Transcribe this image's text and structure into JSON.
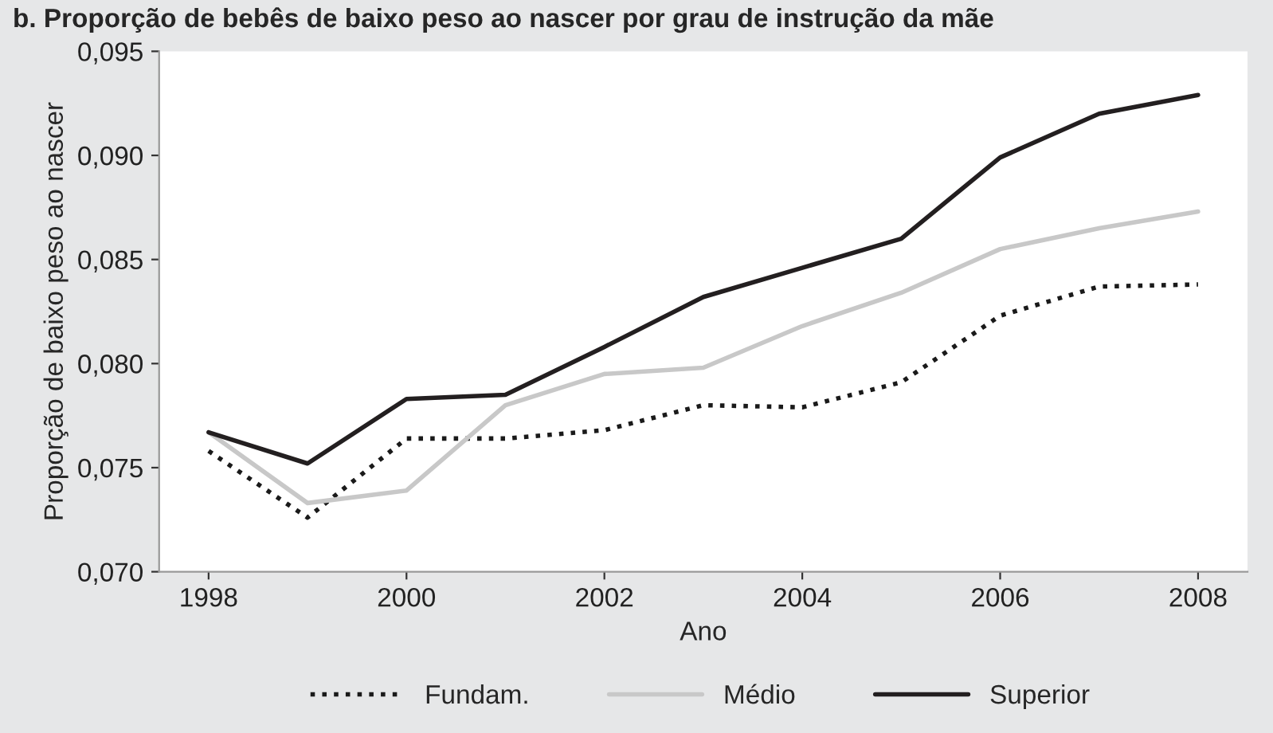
{
  "chart_data": {
    "type": "line",
    "title": "b. Proporção de bebês de baixo peso ao nascer por grau de instrução da mãe",
    "xlabel": "Ano",
    "ylabel": "Proporção de baixo peso ao nascer",
    "x": [
      1998,
      1999,
      2000,
      2001,
      2002,
      2003,
      2004,
      2005,
      2006,
      2007,
      2008
    ],
    "series": [
      {
        "name": "Fundam.",
        "color": "#1a1a1a",
        "line_style": "dotted",
        "values": [
          0.0758,
          0.0726,
          0.0764,
          0.0764,
          0.0768,
          0.078,
          0.0779,
          0.0791,
          0.0823,
          0.0837,
          0.0838
        ]
      },
      {
        "name": "Médio",
        "color": "#c8c8c8",
        "line_style": "solid",
        "values": [
          0.0767,
          0.0733,
          0.0739,
          0.078,
          0.0795,
          0.0798,
          0.0818,
          0.0834,
          0.0855,
          0.0865,
          0.0873
        ]
      },
      {
        "name": "Superior",
        "color": "#231f20",
        "line_style": "solid",
        "values": [
          0.0767,
          0.0752,
          0.0783,
          0.0785,
          0.0808,
          0.0832,
          0.0846,
          0.086,
          0.0899,
          0.092,
          0.0929
        ]
      }
    ],
    "xlim": [
      1997.5,
      2008.5
    ],
    "xticks": [
      1998,
      2000,
      2002,
      2004,
      2006,
      2008
    ],
    "ylim": [
      0.07,
      0.095
    ],
    "yticks": [
      {
        "value": 0.07,
        "label": "0,070"
      },
      {
        "value": 0.075,
        "label": "0,075"
      },
      {
        "value": 0.08,
        "label": "0,080"
      },
      {
        "value": 0.085,
        "label": "0,085"
      },
      {
        "value": 0.09,
        "label": "0,090"
      },
      {
        "value": 0.095,
        "label": "0,095"
      }
    ],
    "grid": false,
    "legend": "bottom",
    "marker": "none"
  }
}
